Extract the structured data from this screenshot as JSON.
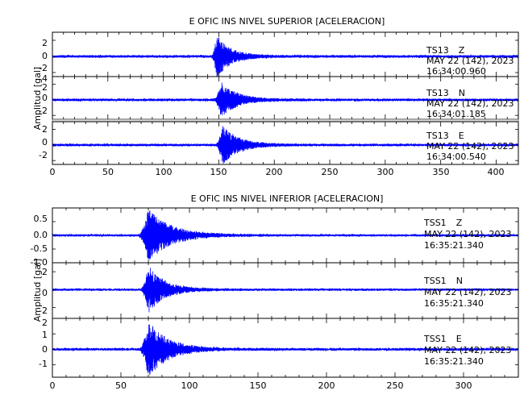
{
  "chart_data": [
    {
      "type": "line",
      "title": "E OFIC INS NIVEL SUPERIOR [ACELERACION]",
      "ylabel": "Amplitud [gal]",
      "xlim": [
        0,
        420
      ],
      "xticks": [
        "0",
        "50",
        "100",
        "150",
        "200",
        "250",
        "300",
        "350",
        "400"
      ],
      "tick_values": [
        0,
        50,
        100,
        150,
        200,
        250,
        300,
        350,
        400
      ],
      "line_color": "#0000ff",
      "traces": [
        {
          "station": "TS13",
          "component": "Z",
          "date": "MAY 22 (142), 2023",
          "time": "16:34:00.960",
          "ylim": [
            -2.5,
            3.0
          ],
          "yticks": [
            "2",
            "0",
            "-2"
          ],
          "ytick_values": [
            2,
            0,
            -2
          ],
          "noise": 0.15,
          "event_onset": 143,
          "event_peak": 148,
          "peak_amplitude": 2.6,
          "decay": 12
        },
        {
          "station": "TS13",
          "component": "N",
          "date": "MAY 22 (142), 2023",
          "time": "16:34:01.185",
          "ylim": [
            -2.5,
            3.0
          ],
          "yticks": [
            "4",
            "2",
            "0",
            "-2"
          ],
          "ytick_values": [
            4,
            2,
            0,
            -2
          ],
          "noise": 0.15,
          "event_onset": 145,
          "event_peak": 152,
          "peak_amplitude": 2.2,
          "decay": 14
        },
        {
          "station": "TS13",
          "component": "E",
          "date": "MAY 22 (142), 2023",
          "time": "16:34:00.540",
          "ylim": [
            -2.5,
            3.0
          ],
          "yticks": [
            "2",
            "0",
            "-2"
          ],
          "ytick_values": [
            2,
            0,
            -2
          ],
          "noise": 0.15,
          "event_onset": 147,
          "event_peak": 153,
          "peak_amplitude": 2.5,
          "decay": 14
        }
      ]
    },
    {
      "type": "line",
      "title": "E OFIC INS NIVEL INFERIOR [ACELERACION]",
      "ylabel": "Amplitud [gal]",
      "xlim": [
        0,
        340
      ],
      "xticks": [
        "0",
        "50",
        "100",
        "150",
        "200",
        "250",
        "300"
      ],
      "tick_values": [
        0,
        50,
        100,
        150,
        200,
        250,
        300
      ],
      "line_color": "#0000ff",
      "traces": [
        {
          "station": "TSS1",
          "component": "Z",
          "date": "MAY 22 (142), 2023",
          "time": "16:35:21.340",
          "ylim": [
            -1.0,
            1.0
          ],
          "yticks": [
            "0.5",
            "0.0",
            "-0.5",
            "-1.0"
          ],
          "ytick_values": [
            0.5,
            0.0,
            -0.5,
            -1.0
          ],
          "noise": 0.04,
          "event_onset": 62,
          "event_peak": 70,
          "peak_amplitude": 0.95,
          "decay": 16
        },
        {
          "station": "TSS1",
          "component": "N",
          "date": "MAY 22 (142), 2023",
          "time": "16:35:21.340",
          "ylim": [
            -3.2,
            3.0
          ],
          "yticks": [
            "2",
            "0",
            "-2"
          ],
          "ytick_values": [
            2,
            0,
            -2
          ],
          "noise": 0.12,
          "event_onset": 64,
          "event_peak": 70,
          "peak_amplitude": 2.6,
          "decay": 12
        },
        {
          "station": "TSS1",
          "component": "E",
          "date": "MAY 22 (142), 2023",
          "time": "16:35:21.340",
          "ylim": [
            -1.8,
            2.0
          ],
          "yticks": [
            "2",
            "1",
            "0",
            "-1"
          ],
          "ytick_values": [
            2,
            1,
            0,
            -1
          ],
          "noise": 0.08,
          "event_onset": 63,
          "event_peak": 70,
          "peak_amplitude": 1.8,
          "decay": 14
        }
      ]
    }
  ]
}
